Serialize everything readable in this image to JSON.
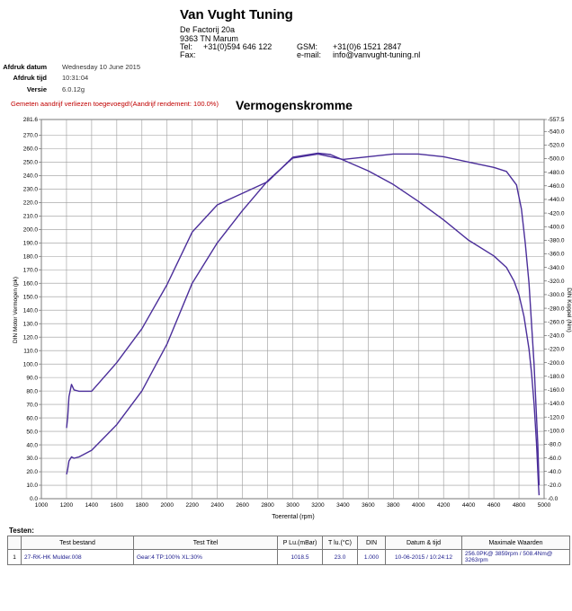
{
  "header": {
    "company": "Van Vught Tuning",
    "street": "De Factorij 20a",
    "city": "9363 TN Marum",
    "tel_label": "Tel:",
    "tel": "+31(0)594 646 122",
    "fax_label": "Fax:",
    "gsm_label": "GSM:",
    "gsm": "+31(0)6 1521 2847",
    "email_label": "e-mail:",
    "email": "info@vanvught-tuning.nl"
  },
  "meta": {
    "date_label": "Afdruk datum",
    "date": "Wednesday 10 June 2015",
    "time_label": "Afdruk tijd",
    "time": "10:31:04",
    "version_label": "Versie",
    "version": "6.0.12g"
  },
  "note": "Gemeten aandrijf verliezen toegevoegd!(Aandrijf rendement: 100.0%)",
  "chart_data": {
    "type": "line",
    "title": "Vermogenskromme",
    "xlabel": "Toerental (rpm)",
    "ylabel": "DIN Motor Vermogen (pk)",
    "y2label": "DIN Koppel (Nm)",
    "xlim": [
      1000,
      5000
    ],
    "ylim": [
      0,
      281.6
    ],
    "y2lim": [
      0,
      557.5
    ],
    "grid": true,
    "x_ticks": [
      1000,
      1200,
      1400,
      1600,
      1800,
      2000,
      2200,
      2400,
      2600,
      2800,
      3000,
      3200,
      3400,
      3600,
      3800,
      4000,
      4200,
      4400,
      4600,
      4800,
      5000
    ],
    "x_tick_labels": [
      "1000",
      "1200",
      "1400",
      "1600",
      "1800",
      "2000",
      "2200",
      "2400",
      "2600",
      "2800",
      "3000",
      "3200",
      "3400",
      "3600",
      "3800",
      "4000",
      "4200",
      "4400",
      "4600",
      "4800",
      "5000"
    ],
    "y_ticks": [
      0,
      10,
      20,
      30,
      40,
      50,
      60,
      70,
      80,
      90,
      100,
      110,
      120,
      130,
      140,
      150,
      160,
      170,
      180,
      190,
      200,
      210,
      220,
      230,
      240,
      250,
      260,
      270,
      281.6
    ],
    "y_tick_labels": [
      "0.0",
      "10.0",
      "20.0",
      "30.0",
      "40.0",
      "50.0",
      "60.0",
      "70.0",
      "80.0",
      "90.0",
      "100.0",
      "110.0",
      "120.0",
      "130.0",
      "140.0",
      "150.0",
      "160.0",
      "170.0",
      "180.0",
      "190.0",
      "200.0",
      "210.0",
      "220.0",
      "230.0",
      "240.0",
      "250.0",
      "260.0",
      "270.0",
      "281.6"
    ],
    "y2_ticks": [
      0,
      20,
      40,
      60,
      80,
      100,
      120,
      140,
      160,
      180,
      200,
      220,
      240,
      260,
      280,
      300,
      320,
      340,
      360,
      380,
      400,
      420,
      440,
      460,
      480,
      500,
      520,
      540,
      557.5
    ],
    "y2_tick_labels": [
      "0.0",
      "20.0",
      "40.0",
      "60.0",
      "80.0",
      "100.0",
      "120.0",
      "140.0",
      "160.0",
      "180.0",
      "200.0",
      "220.0",
      "240.0",
      "260.0",
      "280.0",
      "300.0",
      "320.0",
      "340.0",
      "360.0",
      "380.0",
      "400.0",
      "420.0",
      "440.0",
      "460.0",
      "480.0",
      "500.0",
      "520.0",
      "540.0",
      "557.5"
    ],
    "series": [
      {
        "axis": "left",
        "color": "#4b2e9a",
        "x": [
          1200,
          1210,
          1220,
          1240,
          1260,
          1300,
          1400,
          1600,
          1800,
          2000,
          2200,
          2400,
          2600,
          2800,
          3000,
          3200,
          3400,
          3600,
          3800,
          4000,
          4200,
          4400,
          4600,
          4700,
          4780,
          4820,
          4850,
          4880,
          4900,
          4920,
          4930,
          4940,
          4950,
          4955,
          4960
        ],
        "y": [
          18,
          22,
          28,
          31,
          30,
          31,
          36,
          55,
          80,
          115,
          160,
          190,
          214,
          236,
          253,
          256,
          252,
          254,
          256,
          256,
          254,
          250,
          246,
          243,
          233,
          215,
          190,
          160,
          130,
          100,
          80,
          60,
          40,
          25,
          10
        ]
      },
      {
        "axis": "right",
        "color": "#4b2e9a",
        "x": [
          1200,
          1210,
          1220,
          1240,
          1260,
          1300,
          1400,
          1600,
          1800,
          2000,
          2200,
          2400,
          2600,
          2800,
          3000,
          3200,
          3300,
          3400,
          3600,
          3800,
          4000,
          4200,
          4400,
          4600,
          4700,
          4760,
          4800,
          4840,
          4880,
          4900,
          4920,
          4940,
          4955,
          4960
        ],
        "y": [
          104,
          120,
          150,
          168,
          160,
          158,
          158,
          200,
          250,
          315,
          392,
          432,
          449,
          466,
          502,
          508,
          506,
          498,
          482,
          462,
          437,
          410,
          380,
          357,
          340,
          320,
          300,
          268,
          220,
          185,
          140,
          80,
          20,
          5
        ]
      }
    ]
  },
  "tests": {
    "label": "Testen:",
    "columns": [
      "Test bestand",
      "Test Titel",
      "P Lu.(mBar)",
      "T lu.(°C)",
      "DIN",
      "Datum & tijd",
      "Maximale Waarden"
    ],
    "rows": [
      {
        "index": "1",
        "file": "27-RK-HK Mulder.008",
        "title": "Gear:4 TP:100% XL:30%",
        "pressure": "1018.5",
        "temp": "23.0",
        "din": "1.000",
        "datetime": "10-06-2015 / 10:24:12",
        "max": "256.0PK@ 3859rpm / 508.4Nm@ 3263rpm"
      }
    ]
  }
}
